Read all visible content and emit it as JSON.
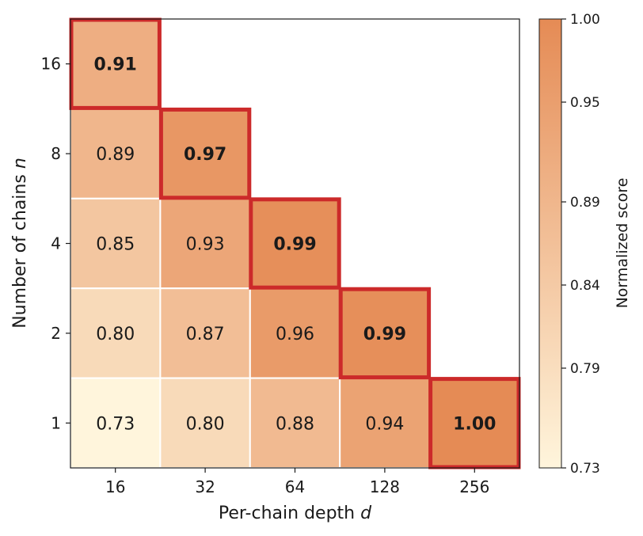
{
  "chart_data": {
    "type": "heatmap",
    "xlabel": "Per-chain depth",
    "xlabel_var": "d",
    "ylabel": "Number of chains",
    "ylabel_var": "n",
    "x_categories": [
      "16",
      "32",
      "64",
      "128",
      "256"
    ],
    "y_categories": [
      "16",
      "8",
      "4",
      "2",
      "1"
    ],
    "cells": [
      {
        "x": "16",
        "y": "16",
        "value": 0.91,
        "label": "0.91",
        "highlight": true
      },
      {
        "x": "16",
        "y": "8",
        "value": 0.89,
        "label": "0.89",
        "highlight": false
      },
      {
        "x": "32",
        "y": "8",
        "value": 0.97,
        "label": "0.97",
        "highlight": true
      },
      {
        "x": "16",
        "y": "4",
        "value": 0.85,
        "label": "0.85",
        "highlight": false
      },
      {
        "x": "32",
        "y": "4",
        "value": 0.93,
        "label": "0.93",
        "highlight": false
      },
      {
        "x": "64",
        "y": "4",
        "value": 0.99,
        "label": "0.99",
        "highlight": true
      },
      {
        "x": "16",
        "y": "2",
        "value": 0.8,
        "label": "0.80",
        "highlight": false
      },
      {
        "x": "32",
        "y": "2",
        "value": 0.87,
        "label": "0.87",
        "highlight": false
      },
      {
        "x": "64",
        "y": "2",
        "value": 0.96,
        "label": "0.96",
        "highlight": false
      },
      {
        "x": "128",
        "y": "2",
        "value": 0.99,
        "label": "0.99",
        "highlight": true
      },
      {
        "x": "16",
        "y": "1",
        "value": 0.73,
        "label": "0.73",
        "highlight": false
      },
      {
        "x": "32",
        "y": "1",
        "value": 0.8,
        "label": "0.80",
        "highlight": false
      },
      {
        "x": "64",
        "y": "1",
        "value": 0.88,
        "label": "0.88",
        "highlight": false
      },
      {
        "x": "128",
        "y": "1",
        "value": 0.94,
        "label": "0.94",
        "highlight": false
      },
      {
        "x": "256",
        "y": "1",
        "value": 1.0,
        "label": "1.00",
        "highlight": true
      }
    ],
    "colorbar": {
      "label": "Normalized score",
      "min": 0.73,
      "max": 1.0,
      "ticks": [
        {
          "value": 1.0,
          "label": "1.00"
        },
        {
          "value": 0.95,
          "label": "0.95"
        },
        {
          "value": 0.89,
          "label": "0.89"
        },
        {
          "value": 0.84,
          "label": "0.84"
        },
        {
          "value": 0.79,
          "label": "0.79"
        },
        {
          "value": 0.73,
          "label": "0.73"
        }
      ],
      "colors": [
        "#fff5dc",
        "#e58b55"
      ]
    },
    "highlight_color": "#cc2a2a",
    "grid_color": "#ffffff"
  }
}
